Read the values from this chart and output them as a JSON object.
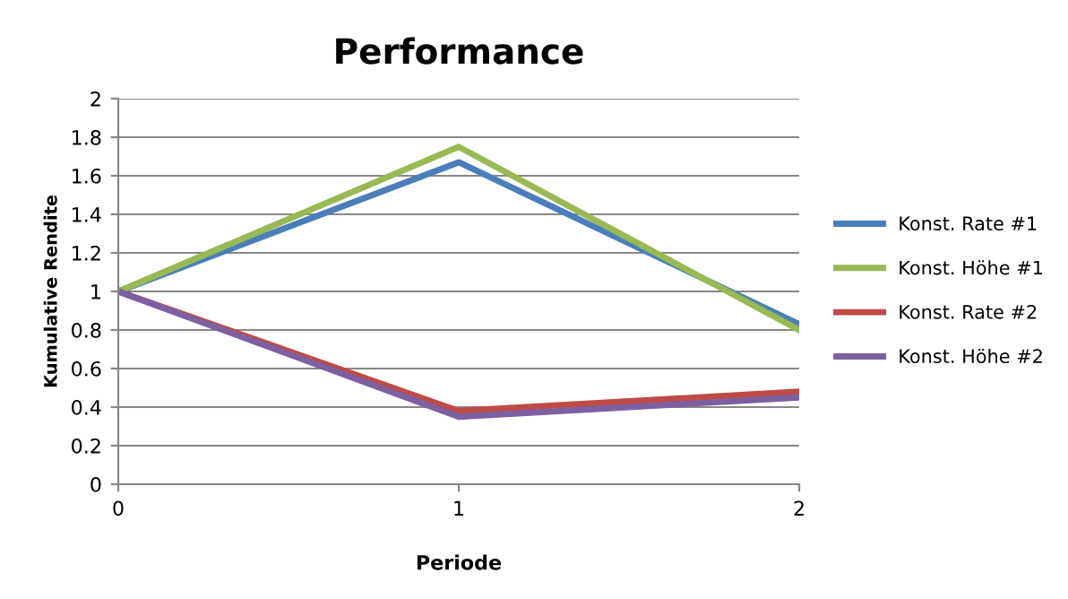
{
  "chart_data": {
    "type": "line",
    "title": "Performance",
    "xlabel": "Periode",
    "ylabel": "Kumulative Rendite",
    "x": [
      0,
      1,
      2
    ],
    "xlim": [
      0,
      2
    ],
    "xticks": [
      0,
      1,
      2
    ],
    "ylim": [
      0,
      2
    ],
    "yticks": [
      0,
      0.2,
      0.4,
      0.6,
      0.8,
      1,
      1.2,
      1.4,
      1.6,
      1.8,
      2
    ],
    "grid": "y",
    "legend": "right",
    "marker": "none",
    "line_style": "solid",
    "series": [
      {
        "name": "Konst. Rate #1",
        "color": "#4a7ebb",
        "values": [
          1,
          1.67,
          0.83
        ]
      },
      {
        "name": "Konst. Höhe #1",
        "color": "#98b954",
        "values": [
          1,
          1.75,
          0.8
        ]
      },
      {
        "name": "Konst. Rate #2",
        "color": "#be4b48",
        "values": [
          1,
          0.38,
          0.48
        ]
      },
      {
        "name": "Konst. Höhe #2",
        "color": "#7d60a0",
        "values": [
          1,
          0.35,
          0.45
        ]
      }
    ]
  }
}
